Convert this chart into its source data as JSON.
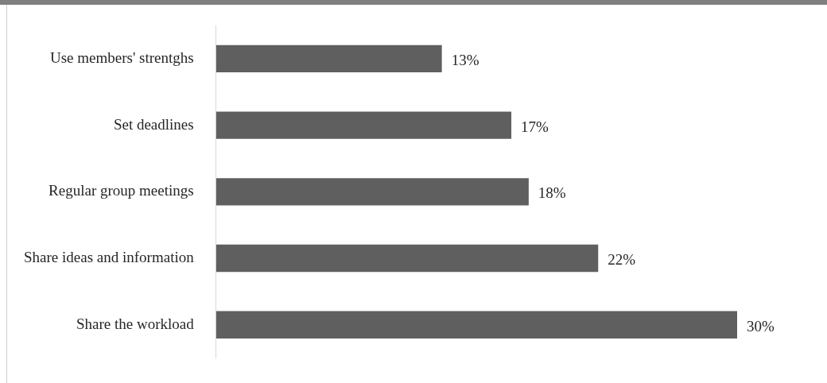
{
  "chart_data": {
    "type": "bar",
    "orientation": "horizontal",
    "categories": [
      "Use members' strentghs",
      "Set deadlines",
      "Regular group meetings",
      "Share ideas and information",
      "Share the workload"
    ],
    "values": [
      13,
      17,
      18,
      22,
      30
    ],
    "value_labels": [
      "13%",
      "17%",
      "18%",
      "22%",
      "30%"
    ],
    "color": "#5f5f5f"
  }
}
